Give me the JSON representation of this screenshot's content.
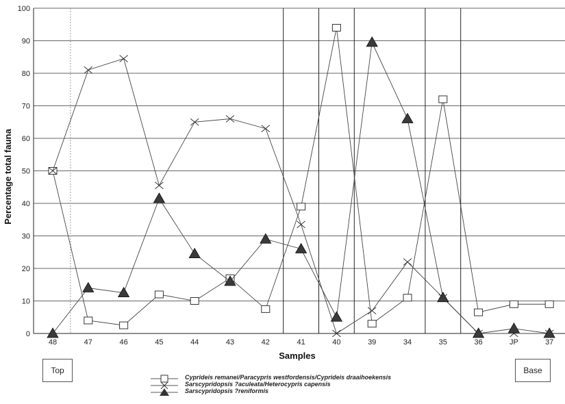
{
  "chart_data": {
    "type": "line",
    "xlabel": "Samples",
    "ylabel": "Percentage total fauna",
    "ylim": [
      0,
      100
    ],
    "yticks": [
      0,
      10,
      20,
      30,
      40,
      50,
      60,
      70,
      80,
      90,
      100
    ],
    "categories": [
      "48",
      "47",
      "46",
      "45",
      "44",
      "43",
      "42",
      "41",
      "40",
      "39",
      "34",
      "35",
      "36",
      "JP",
      "37"
    ],
    "grid": "horizontal",
    "series": [
      {
        "name": "Cyprideis remanei/Paracypris westfordensis/Cyprideis draaihoekensis",
        "marker": "square",
        "values": [
          50,
          4,
          2.5,
          12,
          10,
          17,
          7.5,
          39,
          94,
          3,
          11,
          72,
          6.5,
          9,
          9
        ]
      },
      {
        "name": "Sarscypridopsis ?aculeata/Heterocypris capensis",
        "marker": "x",
        "values": [
          50,
          81,
          84.5,
          45.5,
          65,
          66,
          63,
          33.5,
          0,
          7,
          22,
          11,
          0,
          0,
          0
        ]
      },
      {
        "name": "Sarscypridopsis ?reniformis",
        "marker": "triangle",
        "values": [
          0,
          14,
          12.5,
          41.5,
          24.5,
          16,
          29,
          26,
          5,
          89.5,
          66,
          11,
          0,
          1.5,
          0
        ]
      }
    ]
  },
  "annotations": {
    "top_label": "Top",
    "base_label": "Base"
  }
}
